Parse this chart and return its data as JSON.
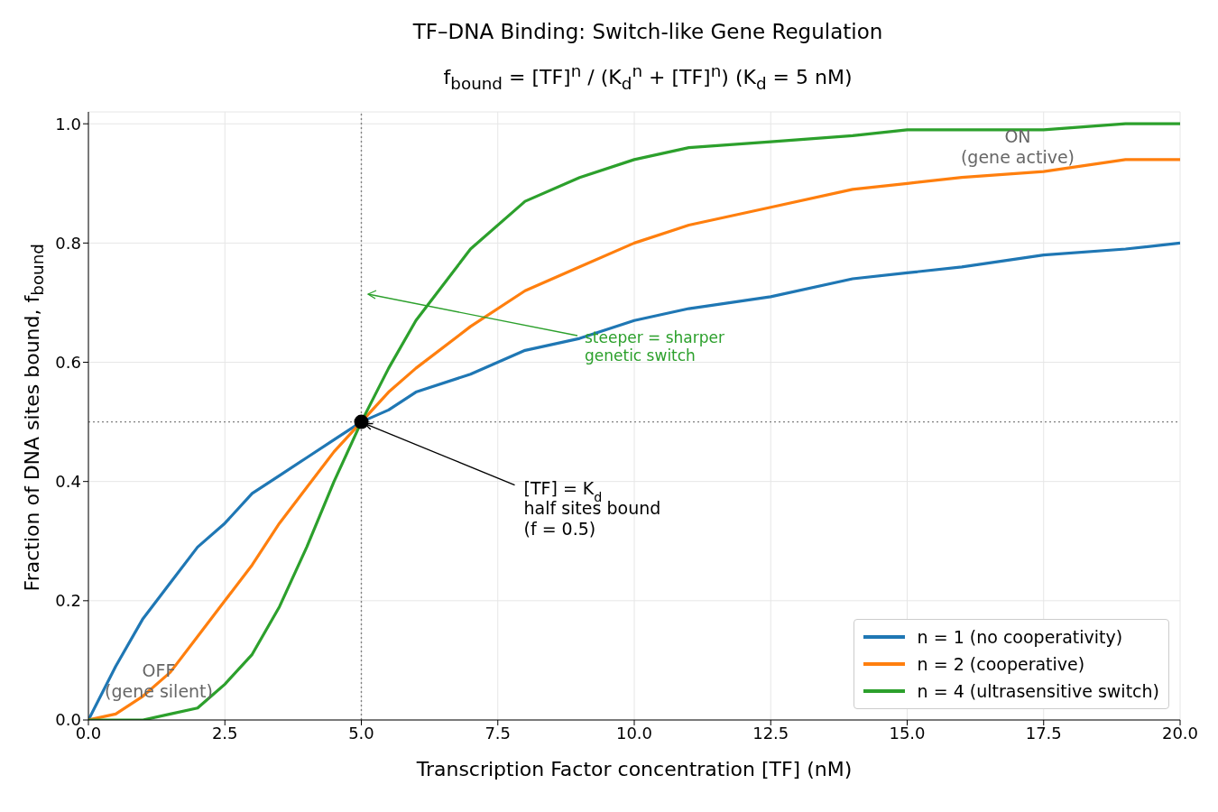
{
  "chart_data": {
    "type": "line",
    "title": "TF–DNA Binding: Switch-like Gene Regulation",
    "subtitle": "f$_{bound}$ = [TF]$^{n}$ / (K$_{d}$$^{n}$ + [TF]$^{n}$)    (K$_{d}$ = 5 nM)",
    "xlabel": "Transcription Factor concentration  [TF]  (nM)",
    "ylabel": "Fraction of DNA sites bound,  f$_{bound}$",
    "x": [
      0,
      0.5,
      1,
      1.5,
      2,
      2.5,
      3,
      3.5,
      4,
      4.5,
      5,
      5.5,
      6,
      7,
      8,
      9,
      10,
      11,
      12.5,
      14,
      15,
      16,
      17.5,
      19,
      20
    ],
    "series": [
      {
        "name": "n = 1 (no cooperativity)",
        "color": "#1f77b4",
        "values": [
          0,
          0.09,
          0.17,
          0.23,
          0.29,
          0.33,
          0.38,
          0.41,
          0.44,
          0.47,
          0.5,
          0.52,
          0.55,
          0.58,
          0.62,
          0.64,
          0.67,
          0.69,
          0.71,
          0.74,
          0.75,
          0.76,
          0.78,
          0.79,
          0.8
        ]
      },
      {
        "name": "n = 2 (cooperative)",
        "color": "#ff7f0e",
        "values": [
          0,
          0.01,
          0.04,
          0.08,
          0.14,
          0.2,
          0.26,
          0.33,
          0.39,
          0.45,
          0.5,
          0.55,
          0.59,
          0.66,
          0.72,
          0.76,
          0.8,
          0.83,
          0.86,
          0.89,
          0.9,
          0.91,
          0.92,
          0.94,
          0.94
        ]
      },
      {
        "name": "n = 4 (ultrasensitive switch)",
        "color": "#2ca02c",
        "values": [
          0,
          0,
          0,
          0.01,
          0.02,
          0.06,
          0.11,
          0.19,
          0.29,
          0.4,
          0.5,
          0.59,
          0.67,
          0.79,
          0.87,
          0.91,
          0.94,
          0.96,
          0.97,
          0.98,
          0.99,
          0.99,
          0.99,
          1.0,
          1.0
        ]
      },
      {
        "type": "scatter",
        "color": "#000000",
        "x": [
          5
        ],
        "values": [
          0.5
        ],
        "marker": "circle"
      }
    ],
    "xlim": [
      0,
      20
    ],
    "xticks": [
      {
        "value": 0,
        "label": "0.0"
      },
      {
        "value": 2.5,
        "label": "2.5"
      },
      {
        "value": 5,
        "label": "5.0"
      },
      {
        "value": 7.5,
        "label": "7.5"
      },
      {
        "value": 10,
        "label": "10.0"
      },
      {
        "value": 12.5,
        "label": "12.5"
      },
      {
        "value": 15,
        "label": "15.0"
      },
      {
        "value": 17.5,
        "label": "17.5"
      },
      {
        "value": 20,
        "label": "20.0"
      }
    ],
    "ylim": [
      0,
      1.02
    ],
    "yticks": [
      {
        "value": 0,
        "label": "0.0"
      },
      {
        "value": 0.2,
        "label": "0.2"
      },
      {
        "value": 0.4,
        "label": "0.4"
      },
      {
        "value": 0.6,
        "label": "0.6"
      },
      {
        "value": 0.8,
        "label": "0.8"
      },
      {
        "value": 1,
        "label": "1.0"
      }
    ],
    "ref_lines": [
      {
        "axis": "x",
        "value": 5,
        "color": "#808080",
        "line_style": "dotted"
      },
      {
        "axis": "y",
        "value": 0.5,
        "color": "#808080",
        "line_style": "dotted"
      }
    ],
    "annotations": [
      {
        "text": "[TF] = K$_{d}$\nhalf sites bound\n(f = 0.5)",
        "x": 5,
        "y": 0.5
      },
      "steeper = sharper\ngenetic switch",
      "ON\n(gene active)",
      "OFF\n(gene silent)"
    ],
    "grid": true,
    "legend": "bottom right",
    "line_style": "solid"
  }
}
